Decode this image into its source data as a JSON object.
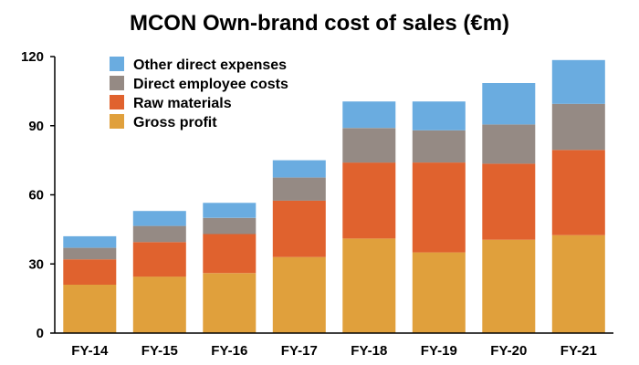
{
  "chart_data": {
    "type": "bar",
    "stacked": true,
    "title": "MCON Own-brand cost of sales (€m)",
    "xlabel": "",
    "ylabel": "",
    "categories": [
      "FY-14",
      "FY-15",
      "FY-16",
      "FY-17",
      "FY-18",
      "FY-19",
      "FY-20",
      "FY-21"
    ],
    "ylim": [
      0,
      120
    ],
    "yticks": [
      0,
      30,
      60,
      90,
      120
    ],
    "grid": false,
    "legend_position": "top-left",
    "series": [
      {
        "name": "Gross profit",
        "color": "#E0A03C",
        "values": [
          21,
          24.5,
          26,
          33,
          41,
          35,
          40.5,
          42.5
        ]
      },
      {
        "name": "Raw materials",
        "color": "#E0622E",
        "values": [
          11,
          15,
          17,
          24.5,
          33,
          39,
          33,
          37
        ]
      },
      {
        "name": "Direct employee costs",
        "color": "#958A84",
        "values": [
          5,
          7,
          7,
          10,
          15,
          14,
          17,
          20
        ]
      },
      {
        "name": "Other direct expenses",
        "color": "#6AACE0",
        "values": [
          5,
          6.5,
          6.5,
          7.5,
          11.5,
          12.5,
          18,
          19
        ]
      }
    ],
    "legend_order": [
      "Other direct expenses",
      "Direct employee costs",
      "Raw materials",
      "Gross profit"
    ]
  }
}
